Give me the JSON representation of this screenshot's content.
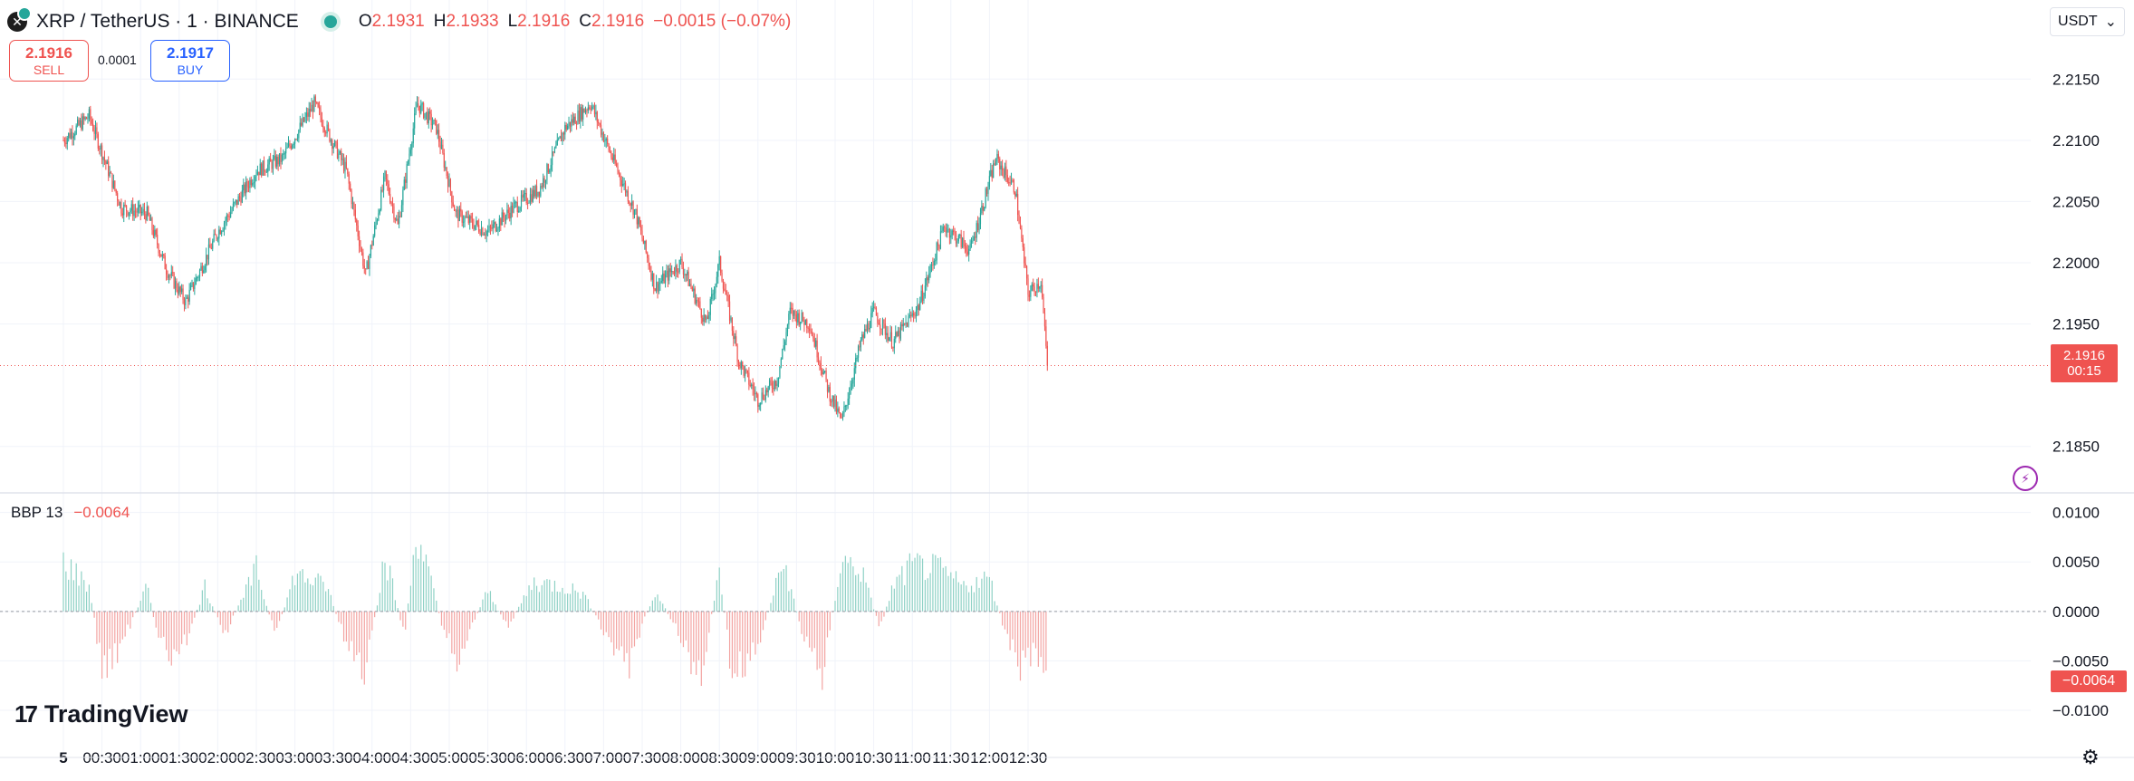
{
  "header": {
    "symbol_icon": "x-logo-icon",
    "title": "XRP / TetherUS · 1 · BINANCE",
    "ohlc": [
      {
        "key": "O",
        "value": "2.1931"
      },
      {
        "key": "H",
        "value": "2.1933"
      },
      {
        "key": "L",
        "value": "2.1916"
      },
      {
        "key": "C",
        "value": "2.1916"
      }
    ],
    "change": "−0.0015 (−0.07%)"
  },
  "trade": {
    "sell_price": "2.1916",
    "sell_label": "SELL",
    "spread": "0.0001",
    "buy_price": "2.1917",
    "buy_label": "BUY"
  },
  "currency": {
    "label": "USDT",
    "icon": "chevron-down-icon"
  },
  "indicator": {
    "name": "BBP 13",
    "value": "−0.0064"
  },
  "last_price": {
    "price": "2.1916",
    "countdown": "00:15"
  },
  "bbp_last": "−0.0064",
  "logo": {
    "mark": "17",
    "name": "TradingView"
  },
  "icons": {
    "lightning": "lightning-icon",
    "settings": "settings-icon"
  },
  "colors": {
    "up": "#26a69a",
    "down": "#ef5350",
    "up_hist": "#8ed1c5",
    "down_hist": "#f3a4a2",
    "grid": "#f0f3fa"
  },
  "chart_data": [
    {
      "type": "candlestick",
      "title": "XRP / TetherUS · 1 · BINANCE",
      "x_ticks": [
        "5",
        "00:30",
        "01:00",
        "01:30",
        "02:00",
        "02:30",
        "03:00",
        "03:30",
        "04:00",
        "04:30",
        "05:00",
        "05:30",
        "06:00",
        "06:30",
        "07:00",
        "07:30",
        "08:00",
        "08:30",
        "09:00",
        "09:30",
        "10:00",
        "10:30",
        "11:00",
        "11:30",
        "12:00",
        "12:30"
      ],
      "y_ticks": [
        "2.2150",
        "2.2100",
        "2.2050",
        "2.2000",
        "2.1950",
        "2.1850"
      ],
      "ylim": [
        2.1815,
        2.2185
      ],
      "series": [
        {
          "close_path": [
            {
              "x": "00:00",
              "y": 2.21
            },
            {
              "x": "00:20",
              "y": 2.212
            },
            {
              "x": "00:45",
              "y": 2.2045
            },
            {
              "x": "01:05",
              "y": 2.204
            },
            {
              "x": "01:20",
              "y": 2.1995
            },
            {
              "x": "01:35",
              "y": 2.1968
            },
            {
              "x": "02:00",
              "y": 2.2025
            },
            {
              "x": "02:30",
              "y": 2.2075
            },
            {
              "x": "02:50",
              "y": 2.2085
            },
            {
              "x": "03:15",
              "y": 2.213
            },
            {
              "x": "03:40",
              "y": 2.2075
            },
            {
              "x": "03:55",
              "y": 2.199
            },
            {
              "x": "04:10",
              "y": 2.207
            },
            {
              "x": "04:20",
              "y": 2.203
            },
            {
              "x": "04:35",
              "y": 2.213
            },
            {
              "x": "04:50",
              "y": 2.211
            },
            {
              "x": "05:05",
              "y": 2.204
            },
            {
              "x": "05:30",
              "y": 2.2025
            },
            {
              "x": "05:50",
              "y": 2.2045
            },
            {
              "x": "06:10",
              "y": 2.206
            },
            {
              "x": "06:30",
              "y": 2.211
            },
            {
              "x": "06:50",
              "y": 2.213
            },
            {
              "x": "07:05",
              "y": 2.209
            },
            {
              "x": "07:25",
              "y": 2.204
            },
            {
              "x": "07:40",
              "y": 2.198
            },
            {
              "x": "08:00",
              "y": 2.2
            },
            {
              "x": "08:20",
              "y": 2.195
            },
            {
              "x": "08:30",
              "y": 2.2
            },
            {
              "x": "08:45",
              "y": 2.192
            },
            {
              "x": "09:00",
              "y": 2.1888
            },
            {
              "x": "09:15",
              "y": 2.1905
            },
            {
              "x": "09:25",
              "y": 2.196
            },
            {
              "x": "09:40",
              "y": 2.195
            },
            {
              "x": "09:55",
              "y": 2.1895
            },
            {
              "x": "10:05",
              "y": 2.187
            },
            {
              "x": "10:20",
              "y": 2.1935
            },
            {
              "x": "10:30",
              "y": 2.196
            },
            {
              "x": "10:45",
              "y": 2.1935
            },
            {
              "x": "11:05",
              "y": 2.1965
            },
            {
              "x": "11:25",
              "y": 2.203
            },
            {
              "x": "11:45",
              "y": 2.201
            },
            {
              "x": "12:05",
              "y": 2.2085
            },
            {
              "x": "12:20",
              "y": 2.206
            },
            {
              "x": "12:30",
              "y": 2.1975
            },
            {
              "x": "12:40",
              "y": 2.1985
            },
            {
              "x": "12:45",
              "y": 2.1916
            }
          ]
        }
      ]
    },
    {
      "type": "histogram",
      "title": "BBP 13",
      "y_ticks": [
        "0.0100",
        "0.0050",
        "0.0000",
        "−0.0050",
        "−0.0100"
      ],
      "ylim": [
        -0.0122,
        0.0118
      ],
      "series": [
        {
          "name": "BBP 13",
          "profile": [
            {
              "x": "00:00",
              "y": 0.006
            },
            {
              "x": "00:20",
              "y": 0.003
            },
            {
              "x": "00:30",
              "y": -0.007
            },
            {
              "x": "00:45",
              "y": -0.004
            },
            {
              "x": "01:05",
              "y": 0.003
            },
            {
              "x": "01:15",
              "y": -0.004
            },
            {
              "x": "01:30",
              "y": -0.006
            },
            {
              "x": "01:50",
              "y": 0.003
            },
            {
              "x": "02:05",
              "y": -0.003
            },
            {
              "x": "02:30",
              "y": 0.005
            },
            {
              "x": "02:45",
              "y": -0.003
            },
            {
              "x": "03:00",
              "y": 0.0045
            },
            {
              "x": "03:25",
              "y": 0.003
            },
            {
              "x": "03:40",
              "y": -0.004
            },
            {
              "x": "03:55",
              "y": -0.008
            },
            {
              "x": "04:10",
              "y": 0.007
            },
            {
              "x": "04:25",
              "y": -0.003
            },
            {
              "x": "04:35",
              "y": 0.01
            },
            {
              "x": "04:55",
              "y": -0.002
            },
            {
              "x": "05:05",
              "y": -0.006
            },
            {
              "x": "05:30",
              "y": 0.0025
            },
            {
              "x": "05:45",
              "y": -0.002
            },
            {
              "x": "06:05",
              "y": 0.0035
            },
            {
              "x": "06:30",
              "y": 0.003
            },
            {
              "x": "06:45",
              "y": 0.002
            },
            {
              "x": "07:05",
              "y": -0.004
            },
            {
              "x": "07:20",
              "y": -0.006
            },
            {
              "x": "07:40",
              "y": 0.0025
            },
            {
              "x": "08:00",
              "y": -0.003
            },
            {
              "x": "08:15",
              "y": -0.0085
            },
            {
              "x": "08:30",
              "y": 0.005
            },
            {
              "x": "08:40",
              "y": -0.008
            },
            {
              "x": "09:00",
              "y": -0.004
            },
            {
              "x": "09:20",
              "y": 0.006
            },
            {
              "x": "09:35",
              "y": -0.003
            },
            {
              "x": "09:50",
              "y": -0.007
            },
            {
              "x": "10:05",
              "y": 0.006
            },
            {
              "x": "10:20",
              "y": 0.005
            },
            {
              "x": "10:35",
              "y": -0.002
            },
            {
              "x": "10:45",
              "y": 0.003
            },
            {
              "x": "11:00",
              "y": 0.0055
            },
            {
              "x": "11:20",
              "y": 0.005
            },
            {
              "x": "11:40",
              "y": 0.003
            },
            {
              "x": "12:00",
              "y": 0.004
            },
            {
              "x": "12:15",
              "y": -0.004
            },
            {
              "x": "12:25",
              "y": -0.007
            },
            {
              "x": "12:35",
              "y": -0.005
            },
            {
              "x": "12:45",
              "y": -0.0064
            }
          ]
        }
      ]
    }
  ]
}
